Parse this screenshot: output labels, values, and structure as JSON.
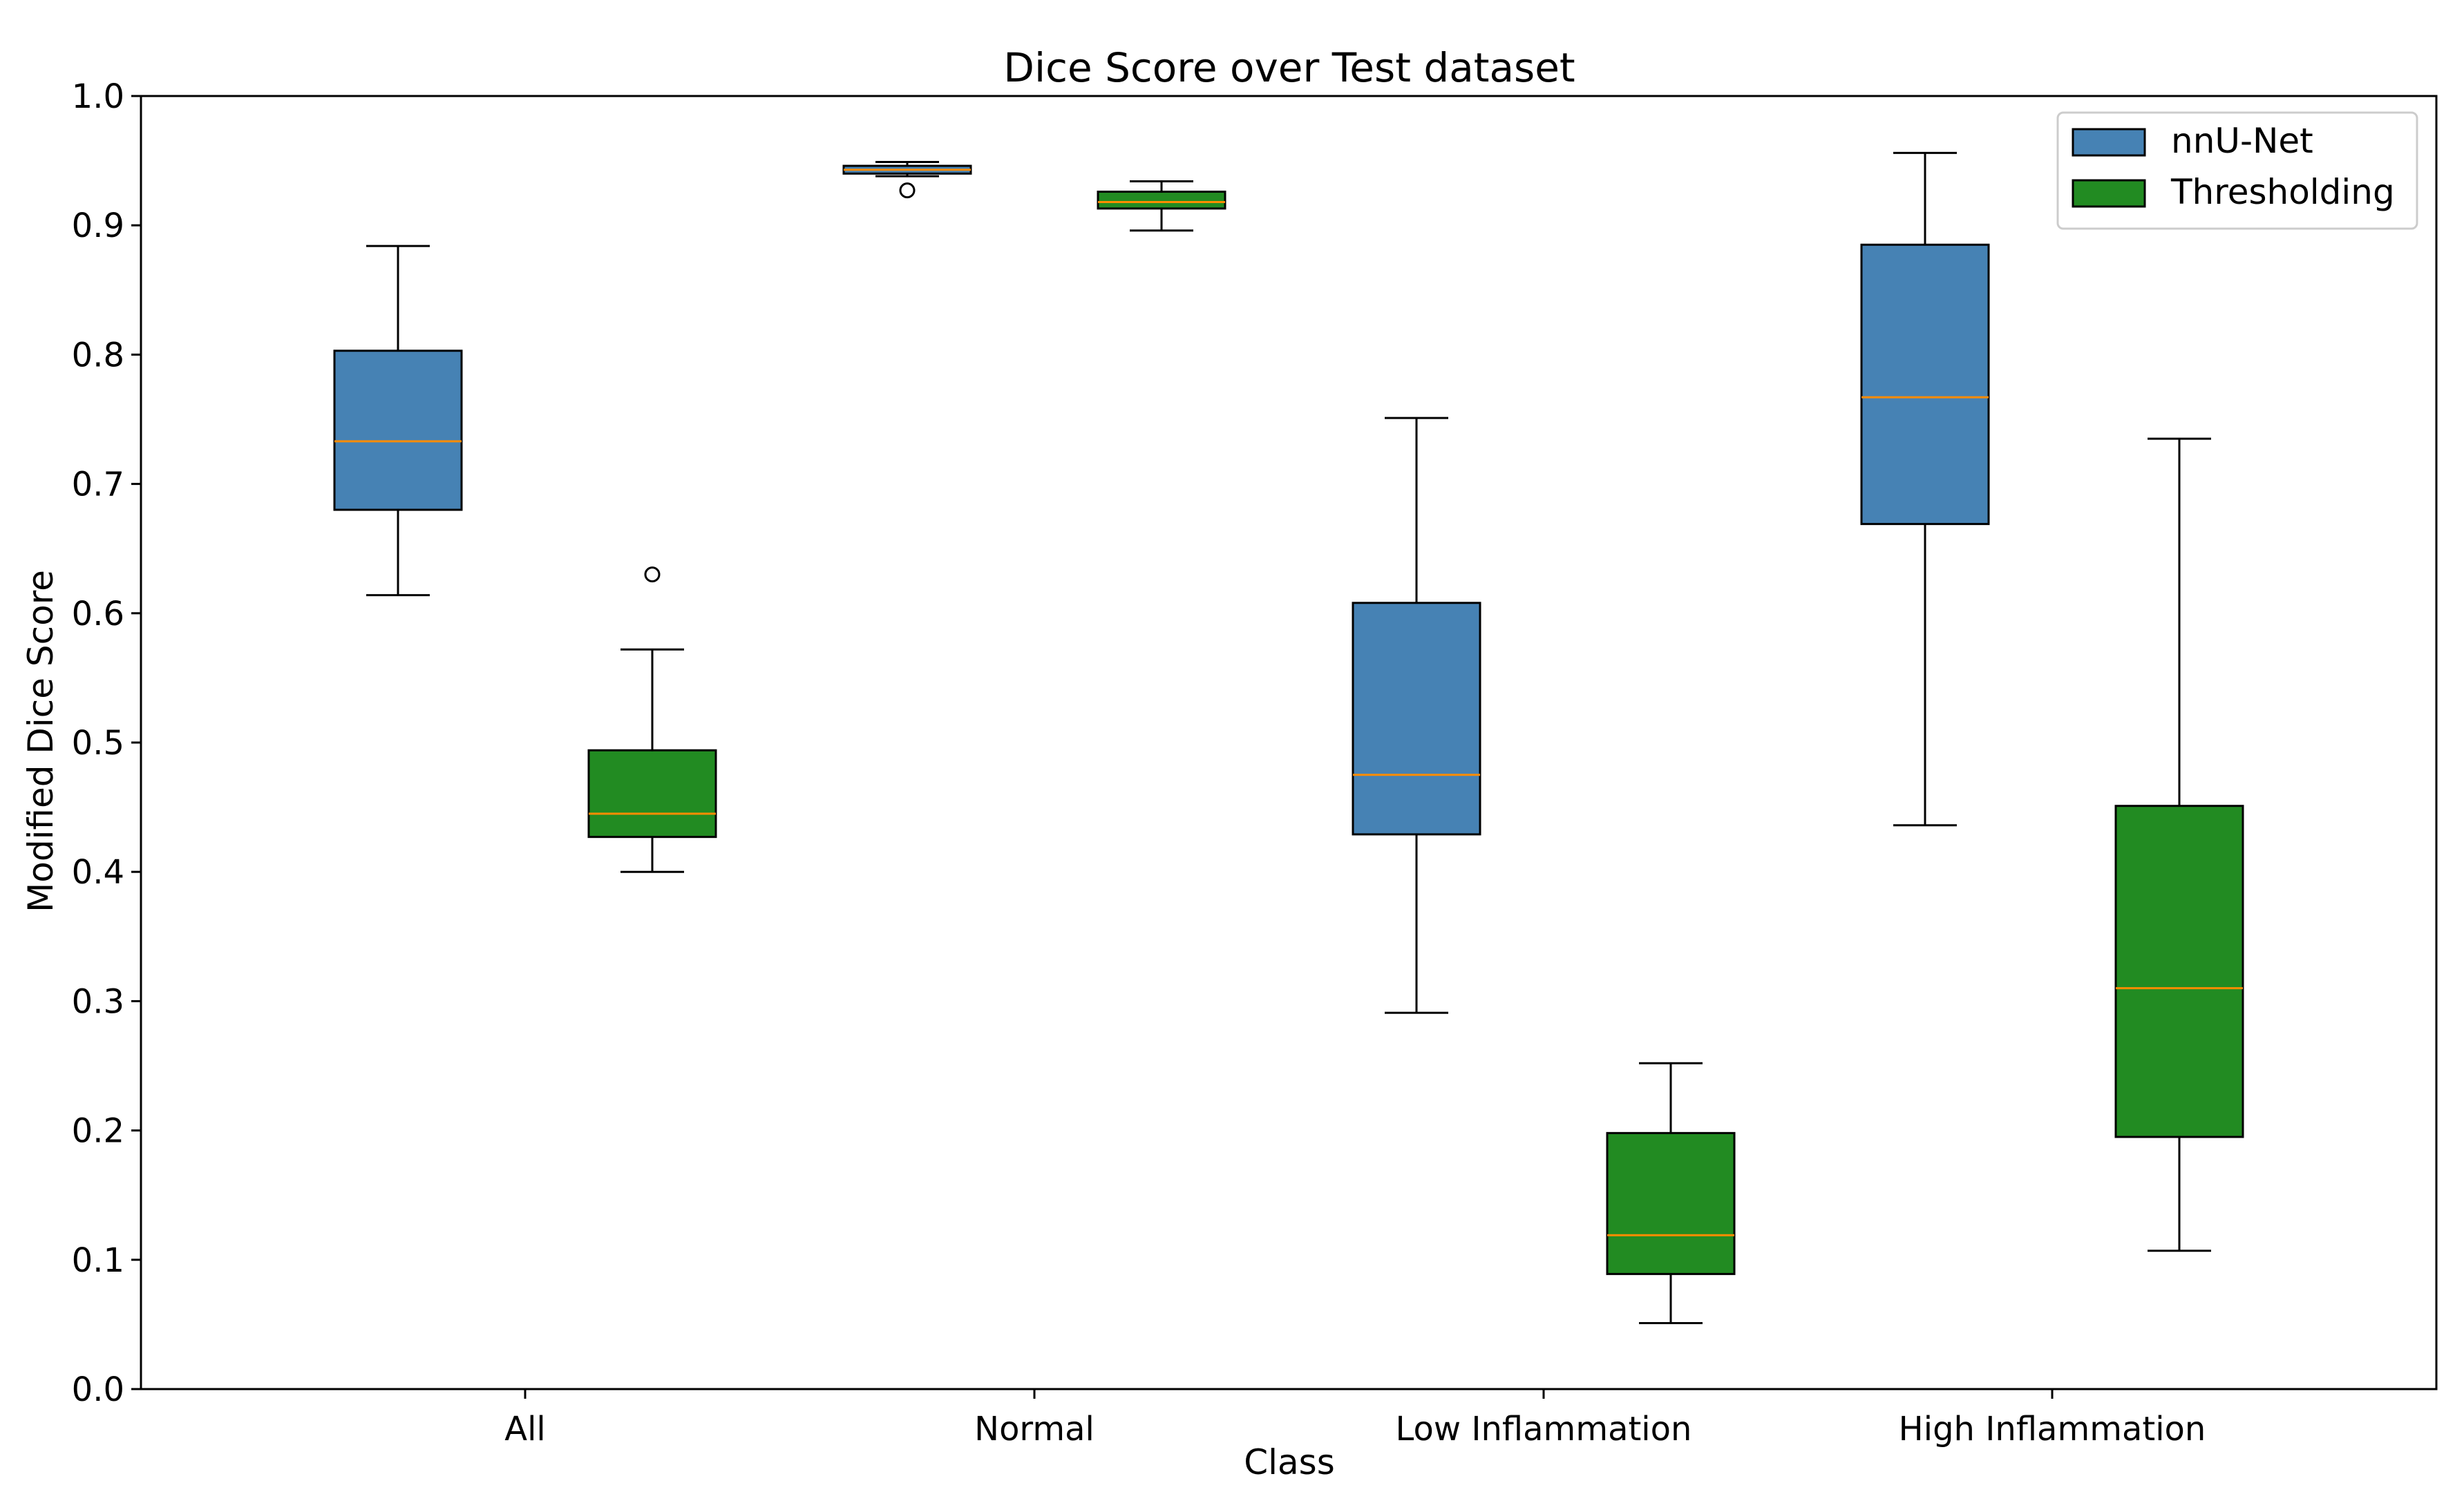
{
  "chart_data": {
    "type": "boxplot",
    "title": "Dice Score over Test dataset",
    "xlabel": "Class",
    "ylabel": "Modified Dice Score",
    "ylim": [
      0.0,
      1.0
    ],
    "yticks": [
      0.0,
      0.1,
      0.2,
      0.3,
      0.4,
      0.5,
      0.6,
      0.7,
      0.8,
      0.9,
      1.0
    ],
    "ytick_labels": [
      "0.0",
      "0.1",
      "0.2",
      "0.3",
      "0.4",
      "0.5",
      "0.6",
      "0.7",
      "0.8",
      "0.9",
      "1.0"
    ],
    "categories": [
      "All",
      "Normal",
      "Low Inflammation",
      "High Inflammation"
    ],
    "grid": false,
    "legend_position": "top-right",
    "median_color": "#ff8c00",
    "series": [
      {
        "name": "nnU-Net",
        "color": "#4682b4",
        "boxes": [
          {
            "whisker_low": 0.614,
            "q1": 0.68,
            "median": 0.733,
            "q3": 0.803,
            "whisker_high": 0.884,
            "outliers": []
          },
          {
            "whisker_low": 0.938,
            "q1": 0.94,
            "median": 0.943,
            "q3": 0.946,
            "whisker_high": 0.949,
            "outliers": [
              0.927
            ]
          },
          {
            "whisker_low": 0.291,
            "q1": 0.429,
            "median": 0.475,
            "q3": 0.608,
            "whisker_high": 0.751,
            "outliers": []
          },
          {
            "whisker_low": 0.436,
            "q1": 0.669,
            "median": 0.767,
            "q3": 0.885,
            "whisker_high": 0.956,
            "outliers": []
          }
        ]
      },
      {
        "name": "Thresholding",
        "color": "#228b22",
        "boxes": [
          {
            "whisker_low": 0.4,
            "q1": 0.427,
            "median": 0.445,
            "q3": 0.494,
            "whisker_high": 0.572,
            "outliers": [
              0.63
            ]
          },
          {
            "whisker_low": 0.896,
            "q1": 0.913,
            "median": 0.918,
            "q3": 0.926,
            "whisker_high": 0.934,
            "outliers": []
          },
          {
            "whisker_low": 0.051,
            "q1": 0.089,
            "median": 0.119,
            "q3": 0.198,
            "whisker_high": 0.252,
            "outliers": []
          },
          {
            "whisker_low": 0.107,
            "q1": 0.195,
            "median": 0.31,
            "q3": 0.451,
            "whisker_high": 0.735,
            "outliers": []
          }
        ]
      }
    ]
  }
}
